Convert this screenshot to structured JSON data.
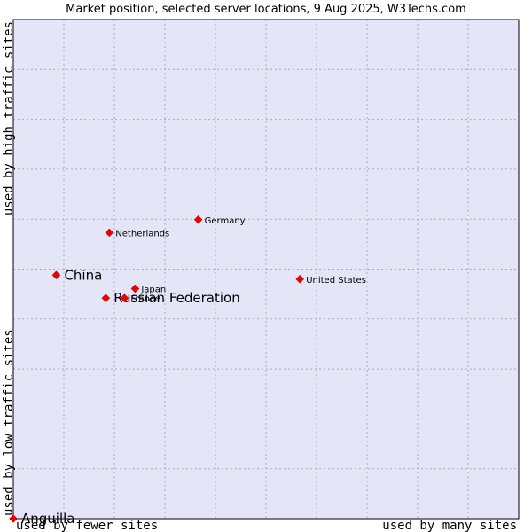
{
  "chart_data": {
    "type": "scatter",
    "title": "Market position, selected server locations, 9 Aug 2025, W3Techs.com",
    "xlabel_left": "used by fewer sites",
    "xlabel_right": "used by many sites",
    "ylabel_bottom": "used by low traffic sites",
    "ylabel_top": "used by high traffic sites",
    "xlim": [
      0,
      100
    ],
    "ylim": [
      0,
      100
    ],
    "grid": true,
    "colors": {
      "plot_bg": "#e4e6f8",
      "grid": "#a9a9c4",
      "point": "#ee0000",
      "frame": "#000000"
    },
    "points": [
      {
        "name": "Anguilla",
        "x": 0.0,
        "y": 0.0,
        "size": "large",
        "label_side": "right"
      },
      {
        "name": "China",
        "x": 8.5,
        "y": 48.8,
        "size": "large",
        "label_side": "right"
      },
      {
        "name": "Russian Federation",
        "x": 18.3,
        "y": 44.2,
        "size": "large",
        "label_side": "right"
      },
      {
        "name": "France",
        "x": 22.0,
        "y": 44.2,
        "size": "small",
        "label_side": "right"
      },
      {
        "name": "Japan",
        "x": 24.1,
        "y": 46.1,
        "size": "small",
        "label_side": "right"
      },
      {
        "name": "Netherlands",
        "x": 19.0,
        "y": 57.3,
        "size": "small",
        "label_side": "right"
      },
      {
        "name": "Germany",
        "x": 36.6,
        "y": 59.9,
        "size": "small",
        "label_side": "right"
      },
      {
        "name": "United States",
        "x": 56.7,
        "y": 48.0,
        "size": "small",
        "label_side": "right"
      }
    ]
  }
}
